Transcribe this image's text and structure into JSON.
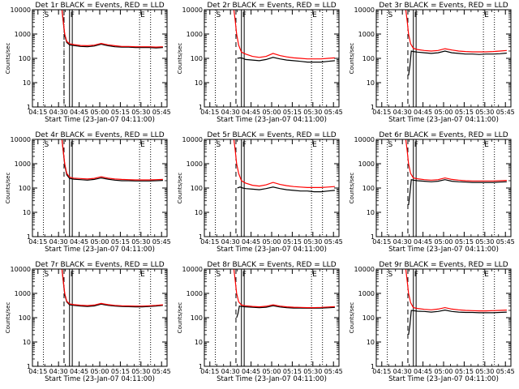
{
  "common": {
    "xlabel": "Start Time (23-Jan-07 04:11:00)",
    "ylabel": "Counts/sec",
    "x_tick_labels": [
      "04:15",
      "04:30",
      "04:45",
      "05:00",
      "05:15",
      "05:30",
      "05:45"
    ],
    "y_tick_labels": [
      "1",
      "10",
      "100",
      "1000",
      "10000"
    ],
    "marker_labels": [
      "S",
      "F",
      "E"
    ],
    "colors": {
      "events": "#000000",
      "lld": "#ff0000",
      "frame": "#000000"
    }
  },
  "chart_data": [
    {
      "type": "line",
      "title": "Det 1r BLACK = Events, RED = LLD",
      "xlabel": "Start Time (23-Jan-07 04:11:00)",
      "ylabel": "Counts/sec",
      "x_unit": "minutes after 04:11:00",
      "xlim": [
        0,
        98
      ],
      "ylim": [
        1,
        10000
      ],
      "yscale": "log",
      "dotted_lines": [
        8,
        23,
        78,
        86
      ],
      "dashed_lines": [
        23
      ],
      "solid_lines": [
        27,
        29
      ],
      "series": [
        {
          "name": "BLACK = Events",
          "color": "#000000",
          "x": [
            21.5,
            22.5,
            23.5,
            25,
            27,
            30,
            35,
            40,
            45,
            50,
            55,
            60,
            65,
            70,
            75,
            80,
            85,
            90,
            95
          ],
          "y": [
            10000,
            3000,
            900,
            450,
            360,
            340,
            310,
            300,
            320,
            380,
            330,
            300,
            290,
            290,
            280,
            280,
            280,
            270,
            280
          ]
        },
        {
          "name": "RED = LLD",
          "color": "#ff0000",
          "x": [
            21.5,
            22.5,
            23.5,
            25,
            27,
            30,
            35,
            40,
            45,
            50,
            55,
            60,
            65,
            70,
            75,
            80,
            85,
            90,
            95
          ],
          "y": [
            10000,
            3300,
            1000,
            500,
            400,
            370,
            340,
            330,
            350,
            410,
            360,
            330,
            310,
            310,
            300,
            300,
            300,
            290,
            300
          ]
        }
      ]
    },
    {
      "type": "line",
      "title": "Det 2r BLACK = Events, RED = LLD",
      "xlabel": "Start Time (23-Jan-07 04:11:00)",
      "ylabel": "Counts/sec",
      "x_unit": "minutes after 04:11:00",
      "xlim": [
        0,
        98
      ],
      "ylim": [
        1,
        10000
      ],
      "yscale": "log",
      "dotted_lines": [
        8,
        78,
        86
      ],
      "dashed_lines": [
        23
      ],
      "solid_lines": [
        27,
        29
      ],
      "series": [
        {
          "name": "BLACK = Events",
          "color": "#000000",
          "x": [
            24,
            26,
            28,
            30,
            35,
            40,
            45,
            50,
            55,
            60,
            65,
            70,
            75,
            80,
            85,
            90,
            95
          ],
          "y": [
            100,
            105,
            100,
            90,
            85,
            80,
            90,
            110,
            95,
            85,
            80,
            75,
            70,
            70,
            70,
            75,
            80
          ]
        },
        {
          "name": "RED = LLD",
          "color": "#ff0000",
          "x": [
            21.5,
            22.5,
            23.5,
            25,
            27,
            30,
            35,
            40,
            45,
            50,
            55,
            60,
            65,
            70,
            75,
            80,
            85,
            90,
            95
          ],
          "y": [
            10000,
            3500,
            1000,
            350,
            180,
            150,
            120,
            110,
            120,
            160,
            130,
            115,
            105,
            100,
            95,
            95,
            95,
            100,
            105
          ]
        }
      ]
    },
    {
      "type": "line",
      "title": "Det 3r BLACK = Events, RED = LLD",
      "xlabel": "Start Time (23-Jan-07 04:11:00)",
      "ylabel": "Counts/sec",
      "x_unit": "minutes after 04:11:00",
      "xlim": [
        0,
        98
      ],
      "ylim": [
        1,
        10000
      ],
      "yscale": "log",
      "dotted_lines": [
        8,
        78,
        86
      ],
      "dashed_lines": [
        23
      ],
      "solid_lines": [
        27,
        29
      ],
      "series": [
        {
          "name": "BLACK = Events",
          "color": "#000000",
          "x": [
            23.5,
            24.5,
            25.5,
            27,
            30,
            35,
            40,
            45,
            50,
            55,
            60,
            65,
            70,
            75,
            80,
            85,
            90,
            95
          ],
          "y": [
            20,
            50,
            200,
            190,
            180,
            170,
            160,
            170,
            200,
            170,
            160,
            150,
            150,
            145,
            150,
            150,
            155,
            165
          ]
        },
        {
          "name": "RED = LLD",
          "color": "#ff0000",
          "x": [
            21.5,
            22.5,
            23.5,
            25,
            27,
            30,
            35,
            40,
            45,
            50,
            55,
            60,
            65,
            70,
            75,
            80,
            85,
            90,
            95
          ],
          "y": [
            10000,
            3500,
            1000,
            400,
            260,
            230,
            210,
            200,
            210,
            250,
            220,
            200,
            190,
            185,
            185,
            185,
            190,
            200,
            210
          ]
        }
      ]
    },
    {
      "type": "line",
      "title": "Det 4r BLACK = Events, RED = LLD",
      "xlabel": "Start Time (23-Jan-07 04:11:00)",
      "ylabel": "Counts/sec",
      "x_unit": "minutes after 04:11:00",
      "xlim": [
        0,
        98
      ],
      "ylim": [
        1,
        10000
      ],
      "yscale": "log",
      "dotted_lines": [
        8,
        78,
        86
      ],
      "dashed_lines": [
        23
      ],
      "solid_lines": [
        27,
        29
      ],
      "series": [
        {
          "name": "BLACK = Events",
          "color": "#000000",
          "x": [
            21.5,
            22.5,
            23.5,
            25,
            27,
            30,
            35,
            40,
            45,
            50,
            55,
            60,
            65,
            70,
            75,
            80,
            85,
            90,
            95
          ],
          "y": [
            10000,
            3000,
            900,
            350,
            250,
            230,
            220,
            210,
            225,
            260,
            230,
            210,
            200,
            200,
            195,
            195,
            195,
            200,
            205
          ]
        },
        {
          "name": "RED = LLD",
          "color": "#ff0000",
          "x": [
            21.5,
            22.5,
            23.5,
            25,
            27,
            30,
            35,
            40,
            45,
            50,
            55,
            60,
            65,
            70,
            75,
            80,
            85,
            90,
            95
          ],
          "y": [
            10000,
            3300,
            1000,
            400,
            280,
            255,
            245,
            235,
            250,
            290,
            255,
            235,
            225,
            220,
            215,
            215,
            215,
            220,
            225
          ]
        }
      ]
    },
    {
      "type": "line",
      "title": "Det 5r BLACK = Events, RED = LLD",
      "xlabel": "Start Time (23-Jan-07 04:11:00)",
      "ylabel": "Counts/sec",
      "x_unit": "minutes after 04:11:00",
      "xlim": [
        0,
        98
      ],
      "ylim": [
        1,
        10000
      ],
      "yscale": "log",
      "dotted_lines": [
        8,
        78,
        86
      ],
      "dashed_lines": [
        23
      ],
      "solid_lines": [
        27,
        29
      ],
      "series": [
        {
          "name": "BLACK = Events",
          "color": "#000000",
          "x": [
            24,
            26,
            28,
            30,
            35,
            40,
            45,
            50,
            55,
            60,
            65,
            70,
            75,
            80,
            85,
            90,
            95
          ],
          "y": [
            100,
            110,
            100,
            95,
            90,
            85,
            95,
            110,
            95,
            85,
            80,
            75,
            75,
            70,
            70,
            75,
            80
          ]
        },
        {
          "name": "RED = LLD",
          "color": "#ff0000",
          "x": [
            21.5,
            22.5,
            23.5,
            25,
            27,
            30,
            35,
            40,
            45,
            50,
            55,
            60,
            65,
            70,
            75,
            80,
            85,
            90,
            95
          ],
          "y": [
            10000,
            3500,
            1000,
            400,
            200,
            160,
            130,
            120,
            135,
            170,
            140,
            125,
            115,
            110,
            105,
            105,
            105,
            110,
            115
          ]
        }
      ]
    },
    {
      "type": "line",
      "title": "Det 6r BLACK = Events, RED = LLD",
      "xlabel": "Start Time (23-Jan-07 04:11:00)",
      "ylabel": "Counts/sec",
      "x_unit": "minutes after 04:11:00",
      "xlim": [
        0,
        98
      ],
      "ylim": [
        1,
        10000
      ],
      "yscale": "log",
      "dotted_lines": [
        8,
        78,
        86
      ],
      "dashed_lines": [
        23
      ],
      "solid_lines": [
        27,
        29
      ],
      "series": [
        {
          "name": "BLACK = Events",
          "color": "#000000",
          "x": [
            23.5,
            24.5,
            25.5,
            27,
            30,
            35,
            40,
            45,
            50,
            55,
            60,
            65,
            70,
            75,
            80,
            85,
            90,
            95
          ],
          "y": [
            20,
            60,
            220,
            210,
            200,
            190,
            180,
            190,
            220,
            190,
            180,
            175,
            170,
            170,
            170,
            170,
            175,
            180
          ]
        },
        {
          "name": "RED = LLD",
          "color": "#ff0000",
          "x": [
            21.5,
            22.5,
            23.5,
            25,
            27,
            30,
            35,
            40,
            45,
            50,
            55,
            60,
            65,
            70,
            75,
            80,
            85,
            90,
            95
          ],
          "y": [
            10000,
            3500,
            1000,
            400,
            260,
            240,
            220,
            210,
            220,
            260,
            225,
            210,
            200,
            195,
            195,
            195,
            195,
            200,
            205
          ]
        }
      ]
    },
    {
      "type": "line",
      "title": "Det 7r BLACK = Events, RED = LLD",
      "xlabel": "Start Time (23-Jan-07 04:11:00)",
      "ylabel": "Counts/sec",
      "x_unit": "minutes after 04:11:00",
      "xlim": [
        0,
        98
      ],
      "ylim": [
        1,
        10000
      ],
      "yscale": "log",
      "dotted_lines": [
        8,
        78,
        86
      ],
      "dashed_lines": [
        23
      ],
      "solid_lines": [
        27,
        29
      ],
      "series": [
        {
          "name": "BLACK = Events",
          "color": "#000000",
          "x": [
            21.5,
            22.5,
            23.5,
            25,
            27,
            30,
            35,
            40,
            45,
            50,
            55,
            60,
            65,
            70,
            75,
            80,
            85,
            90,
            95
          ],
          "y": [
            10000,
            3000,
            900,
            450,
            340,
            320,
            300,
            290,
            305,
            360,
            320,
            300,
            290,
            285,
            280,
            280,
            290,
            300,
            320
          ]
        },
        {
          "name": "RED = LLD",
          "color": "#ff0000",
          "x": [
            21.5,
            22.5,
            23.5,
            25,
            27,
            30,
            35,
            40,
            45,
            50,
            55,
            60,
            65,
            70,
            75,
            80,
            85,
            90,
            95
          ],
          "y": [
            10000,
            3300,
            1000,
            480,
            370,
            345,
            325,
            315,
            330,
            385,
            345,
            320,
            310,
            305,
            300,
            300,
            310,
            320,
            340
          ]
        }
      ]
    },
    {
      "type": "line",
      "title": "Det 8r BLACK = Events, RED = LLD",
      "xlabel": "Start Time (23-Jan-07 04:11:00)",
      "ylabel": "Counts/sec",
      "x_unit": "minutes after 04:11:00",
      "xlim": [
        0,
        98
      ],
      "ylim": [
        1,
        10000
      ],
      "yscale": "log",
      "dotted_lines": [
        8,
        78,
        86
      ],
      "dashed_lines": [
        23
      ],
      "solid_lines": [
        27,
        29
      ],
      "series": [
        {
          "name": "BLACK = Events",
          "color": "#000000",
          "x": [
            23.5,
            24.5,
            25.5,
            27,
            30,
            35,
            40,
            45,
            50,
            55,
            60,
            65,
            70,
            75,
            80,
            85,
            90,
            95
          ],
          "y": [
            100,
            150,
            300,
            290,
            280,
            270,
            260,
            270,
            310,
            275,
            260,
            250,
            250,
            245,
            245,
            250,
            255,
            265
          ]
        },
        {
          "name": "RED = LLD",
          "color": "#ff0000",
          "x": [
            21.5,
            22.5,
            23.5,
            25,
            27,
            30,
            35,
            40,
            45,
            50,
            55,
            60,
            65,
            70,
            75,
            80,
            85,
            90,
            95
          ],
          "y": [
            10000,
            3300,
            1000,
            450,
            330,
            310,
            290,
            280,
            295,
            340,
            300,
            280,
            270,
            265,
            260,
            260,
            265,
            275,
            285
          ]
        }
      ]
    },
    {
      "type": "line",
      "title": "Det 9r BLACK = Events, RED = LLD",
      "xlabel": "Start Time (23-Jan-07 04:11:00)",
      "ylabel": "Counts/sec",
      "x_unit": "minutes after 04:11:00",
      "xlim": [
        0,
        98
      ],
      "ylim": [
        1,
        10000
      ],
      "yscale": "log",
      "dotted_lines": [
        8,
        78,
        86
      ],
      "dashed_lines": [
        23
      ],
      "solid_lines": [
        27,
        29
      ],
      "series": [
        {
          "name": "BLACK = Events",
          "color": "#000000",
          "x": [
            23.5,
            24.5,
            25.5,
            27,
            30,
            35,
            40,
            45,
            50,
            55,
            60,
            65,
            70,
            75,
            80,
            85,
            90,
            95
          ],
          "y": [
            20,
            50,
            200,
            195,
            185,
            180,
            170,
            180,
            205,
            180,
            170,
            165,
            165,
            160,
            160,
            160,
            165,
            170
          ]
        },
        {
          "name": "RED = LLD",
          "color": "#ff0000",
          "x": [
            21.5,
            22.5,
            23.5,
            25,
            27,
            30,
            35,
            40,
            45,
            50,
            55,
            60,
            65,
            70,
            75,
            80,
            85,
            90,
            95
          ],
          "y": [
            10000,
            3300,
            1000,
            420,
            260,
            240,
            220,
            210,
            225,
            260,
            225,
            210,
            200,
            195,
            190,
            190,
            195,
            200,
            205
          ]
        }
      ]
    }
  ]
}
